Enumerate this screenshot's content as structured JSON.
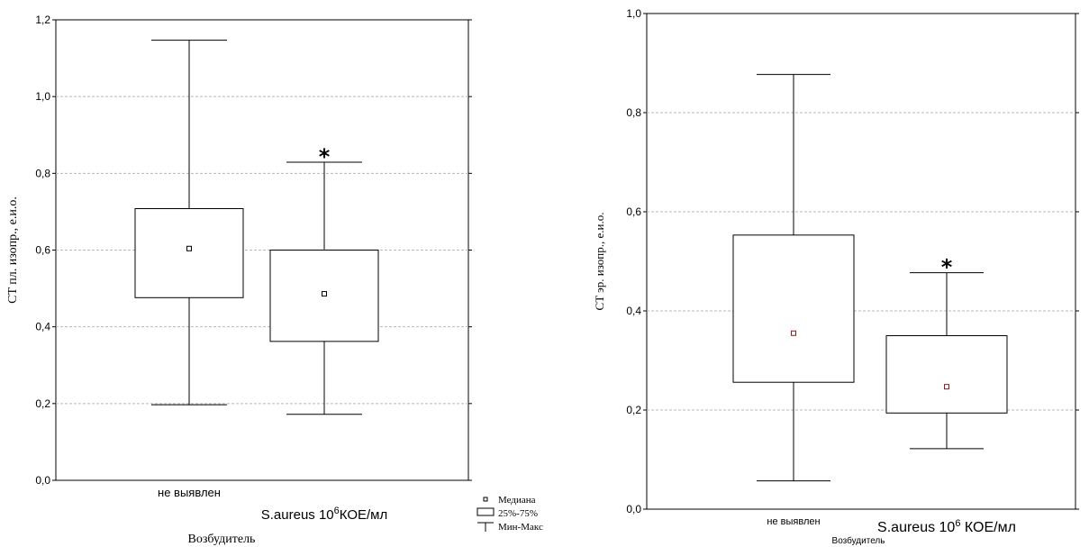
{
  "chart_data": [
    {
      "type": "box",
      "ylabel": "CT пл. изопр., е.и.о.",
      "xlabel": "Возбудитель",
      "ylim": [
        0,
        1.2
      ],
      "yticks": [
        "0,0",
        "0,2",
        "0,4",
        "0,6",
        "0,8",
        "1,0",
        "1,2"
      ],
      "grid": true,
      "categories": [
        {
          "label": "не выявлен",
          "label_parts": null,
          "min": 0.197,
          "q1": 0.476,
          "median": 0.604,
          "q3": 0.708,
          "max": 1.147,
          "marker": ""
        },
        {
          "label": "S.aureus 10⁶КОЕ/мл",
          "label_parts": [
            "S.aureus 10",
            "6",
            "КОЕ/мл"
          ],
          "min": 0.172,
          "q1": 0.362,
          "median": 0.486,
          "q3": 0.6,
          "max": 0.829,
          "marker": "*"
        }
      ],
      "median_color": "#000000",
      "legend": {
        "placement": "bottom-right",
        "items": [
          {
            "symbol": "median",
            "label": "Медиана"
          },
          {
            "symbol": "box",
            "label": "25%-75%"
          },
          {
            "symbol": "whisker",
            "label": "Мин-Макс"
          }
        ]
      }
    },
    {
      "type": "box",
      "ylabel": "CT эр. изопр., е.и.о.",
      "xlabel": "Возбудитель",
      "ylim": [
        0,
        1.0
      ],
      "yticks": [
        "0,0",
        "0,2",
        "0,4",
        "0,6",
        "0,8",
        "1,0"
      ],
      "grid": true,
      "categories": [
        {
          "label": "не выявлен",
          "label_parts": null,
          "min": 0.057,
          "q1": 0.256,
          "median": 0.355,
          "q3": 0.553,
          "max": 0.877,
          "marker": ""
        },
        {
          "label": "S.aureus 10⁶ КОЕ/мл",
          "label_parts": [
            "S.aureus 10",
            "6",
            " КОЕ/мл"
          ],
          "min": 0.122,
          "q1": 0.194,
          "median": 0.247,
          "q3": 0.35,
          "max": 0.477,
          "marker": "*"
        }
      ],
      "median_color": "#8b1a1a",
      "legend": null
    }
  ]
}
